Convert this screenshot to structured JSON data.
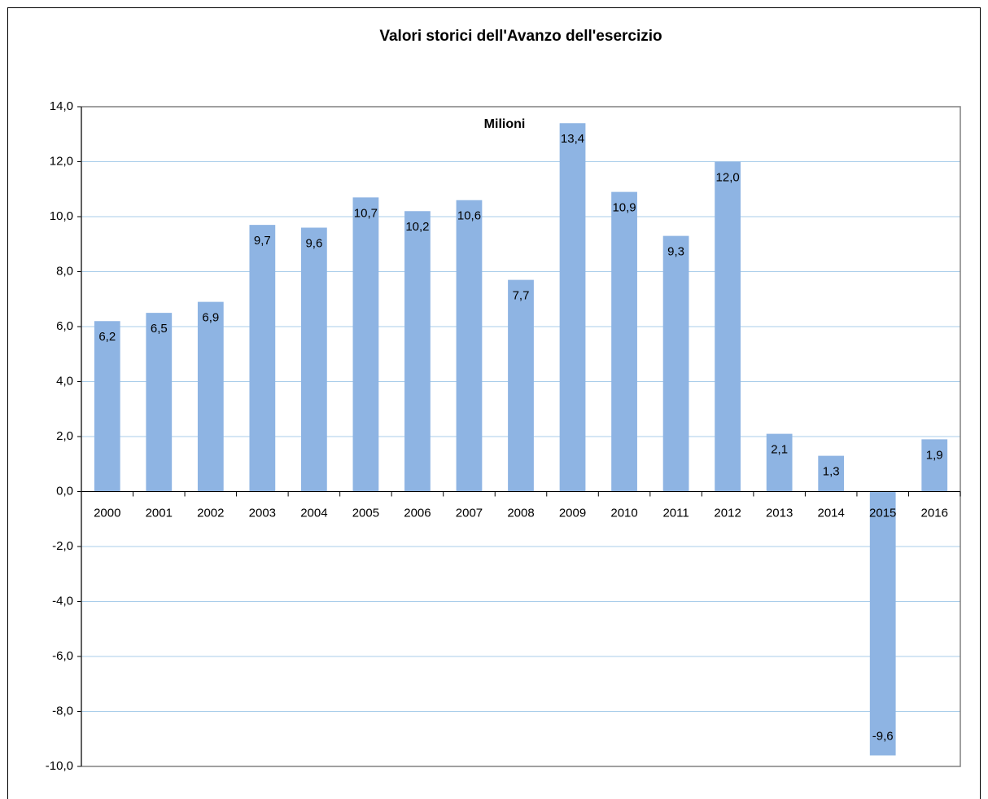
{
  "chart_data": {
    "type": "bar",
    "title": "Valori storici dell'Avanzo dell'esercizio",
    "annotation": "Milioni",
    "categories": [
      "2000",
      "2001",
      "2002",
      "2003",
      "2004",
      "2005",
      "2006",
      "2007",
      "2008",
      "2009",
      "2010",
      "2011",
      "2012",
      "2013",
      "2014",
      "2015",
      "2016"
    ],
    "values": [
      6.2,
      6.5,
      6.9,
      9.7,
      9.6,
      10.7,
      10.2,
      10.6,
      7.7,
      13.4,
      10.9,
      9.3,
      12.0,
      2.1,
      1.3,
      -9.6,
      1.9
    ],
    "value_labels": [
      "6,2",
      "6,5",
      "6,9",
      "9,7",
      "9,6",
      "10,7",
      "10,2",
      "10,6",
      "7,7",
      "13,4",
      "10,9",
      "9,3",
      "12,0",
      "2,1",
      "1,3",
      "-9,6",
      "1,9"
    ],
    "color": "#8eb4e3",
    "ylim": [
      -10,
      14
    ],
    "yticks": [
      {
        "value": -10,
        "label": "-10,0"
      },
      {
        "value": -8,
        "label": "-8,0"
      },
      {
        "value": -6,
        "label": "-6,0"
      },
      {
        "value": -4,
        "label": "-4,0"
      },
      {
        "value": -2,
        "label": "-2,0"
      },
      {
        "value": 0,
        "label": "0,0"
      },
      {
        "value": 2,
        "label": "2,0"
      },
      {
        "value": 4,
        "label": "4,0"
      },
      {
        "value": 6,
        "label": "6,0"
      },
      {
        "value": 8,
        "label": "8,0"
      },
      {
        "value": 10,
        "label": "10,0"
      },
      {
        "value": 12,
        "label": "12,0"
      },
      {
        "value": 14,
        "label": "14,0"
      }
    ],
    "grid": true
  }
}
